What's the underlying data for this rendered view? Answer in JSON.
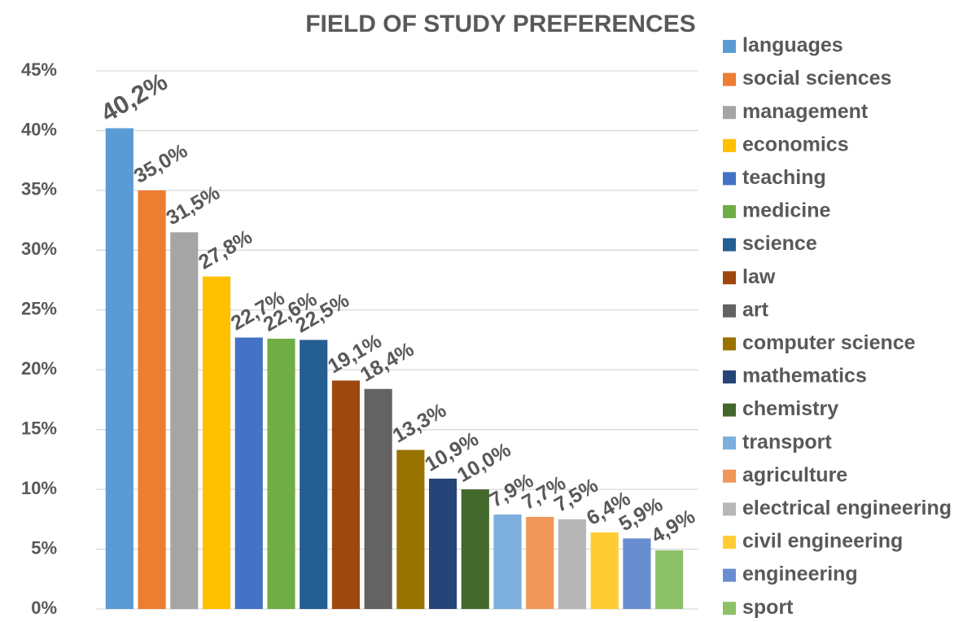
{
  "chart_data": {
    "type": "bar",
    "title": "FIELD OF STUDY PREFERENCES",
    "categories": [
      "languages",
      "social sciences",
      "management",
      "economics",
      "teaching",
      "medicine",
      "science",
      "law",
      "art",
      "computer science",
      "mathematics",
      "chemistry",
      "transport",
      "agriculture",
      "electrical engineering",
      "civil engineering",
      "engineering",
      "sport"
    ],
    "values": [
      40.2,
      35.0,
      31.5,
      27.8,
      22.7,
      22.6,
      22.5,
      19.1,
      18.4,
      13.3,
      10.9,
      10.0,
      7.9,
      7.7,
      7.5,
      6.4,
      5.9,
      4.9
    ],
    "value_labels": [
      "40,2%",
      "35,0%",
      "31,5%",
      "27,8%",
      "22,7%",
      "22,6%",
      "22,5%",
      "19,1%",
      "18,4%",
      "13,3%",
      "10,9%",
      "10,0%",
      "7,9%",
      "7,7%",
      "7,5%",
      "6,4%",
      "5,9%",
      "4,9%"
    ],
    "colors": [
      "#5b9bd5",
      "#ed7d31",
      "#a5a5a5",
      "#ffc000",
      "#4472c4",
      "#70ad47",
      "#255e91",
      "#9e480e",
      "#636363",
      "#997300",
      "#264478",
      "#43682b",
      "#7cafdd",
      "#f1975a",
      "#b7b7b7",
      "#ffcd33",
      "#698ed0",
      "#8cc168"
    ],
    "ylim": [
      0,
      45
    ],
    "yticks": [
      {
        "value": 0,
        "label": "0%"
      },
      {
        "value": 5,
        "label": "5%"
      },
      {
        "value": 10,
        "label": "10%"
      },
      {
        "value": 15,
        "label": "15%"
      },
      {
        "value": 20,
        "label": "20%"
      },
      {
        "value": 25,
        "label": "25%"
      },
      {
        "value": 30,
        "label": "30%"
      },
      {
        "value": 35,
        "label": "35%"
      },
      {
        "value": 40,
        "label": "40%"
      },
      {
        "value": 45,
        "label": "45%"
      }
    ],
    "grid": true,
    "legend": "right"
  }
}
